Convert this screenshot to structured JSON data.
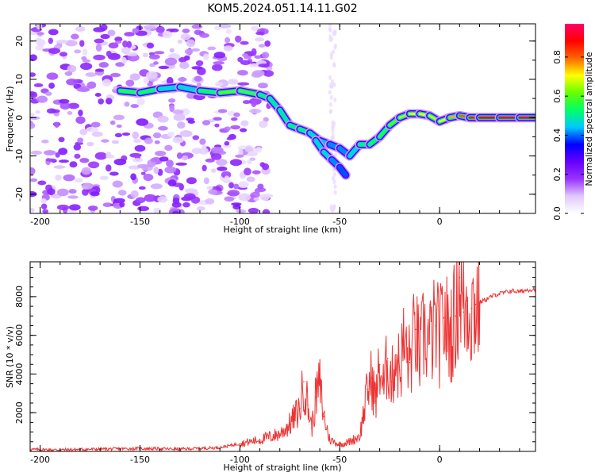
{
  "title": "KOM5.2024.051.14.11.G02",
  "chart_data": [
    {
      "type": "heatmap",
      "xlabel": "Height of straight line (km)",
      "ylabel": "Frequency (Hz)",
      "xlim": [
        -205,
        48
      ],
      "ylim": [
        -25,
        24.5
      ],
      "x_ticks": [
        -200,
        -150,
        -100,
        -50,
        0
      ],
      "y_ticks": [
        -20,
        -10,
        0,
        10,
        20
      ],
      "colorbar": {
        "label": "Normalized spectral amplitude",
        "range": [
          0.0,
          0.97
        ],
        "ticks": [
          "0.0",
          "0.2",
          "0.4",
          "0.6",
          "0.8"
        ],
        "tick_values": [
          0.0,
          0.2,
          0.4,
          0.6,
          0.8
        ],
        "colors": [
          "#ffffff",
          "#e0c8ff",
          "#9933ff",
          "#6600ff",
          "#0000ff",
          "#00c8ff",
          "#00ff66",
          "#66ff00",
          "#ffff00",
          "#ff6600",
          "#ff0000",
          "#ff0066"
        ]
      },
      "ridge": {
        "x": [
          -160,
          -150,
          -140,
          -130,
          -120,
          -110,
          -100,
          -90,
          -85,
          -80,
          -75,
          -70,
          -65,
          -60,
          -55,
          -50,
          -45,
          -40,
          -35,
          -30,
          -25,
          -20,
          -15,
          -10,
          -5,
          0,
          5,
          10,
          15,
          20,
          30,
          40,
          48
        ],
        "y": [
          7,
          6.5,
          7.5,
          8,
          7,
          6.5,
          7,
          6,
          5,
          2,
          -2,
          -3,
          -4,
          -6,
          -7,
          -8,
          -10,
          -7,
          -7,
          -5,
          -2,
          0,
          1,
          1,
          0.5,
          -1,
          0,
          0.5,
          0,
          0,
          0,
          0,
          0
        ],
        "amplitude": [
          0.55,
          0.6,
          0.5,
          0.45,
          0.5,
          0.6,
          0.65,
          0.55,
          0.5,
          0.5,
          0.5,
          0.55,
          0.5,
          0.45,
          0.45,
          0.4,
          0.45,
          0.5,
          0.55,
          0.55,
          0.6,
          0.65,
          0.7,
          0.75,
          0.7,
          0.7,
          0.75,
          0.8,
          0.85,
          0.9,
          0.95,
          0.95,
          0.95
        ]
      },
      "branch": {
        "x": [
          -62,
          -58,
          -54,
          -50,
          -47
        ],
        "y": [
          -6,
          -9,
          -11,
          -13,
          -15
        ],
        "amplitude": [
          0.45,
          0.5,
          0.45,
          0.4,
          0.4
        ]
      },
      "noise_region_x": [
        -205,
        -95
      ]
    },
    {
      "type": "line",
      "xlabel": "Height of straight line (km)",
      "ylabel": "SNR (10 * v/v)",
      "xlim": [
        -205,
        48
      ],
      "ylim": [
        0,
        9800
      ],
      "x_ticks": [
        -200,
        -150,
        -100,
        -50,
        0
      ],
      "y_ticks": [
        2000,
        4000,
        6000,
        8000
      ],
      "series": [
        {
          "color": "#ee3333",
          "x": [
            -205,
            -190,
            -170,
            -150,
            -130,
            -110,
            -100,
            -90,
            -80,
            -75,
            -70,
            -68,
            -66,
            -64,
            -62,
            -60,
            -58,
            -55,
            -50,
            -45,
            -40,
            -36,
            -34,
            -32,
            -30,
            -28,
            -26,
            -24,
            -22,
            -20,
            -18,
            -15,
            -12,
            -10,
            -8,
            -5,
            -2,
            0,
            2,
            5,
            8,
            10,
            12,
            14,
            16,
            18,
            20,
            24,
            28,
            32,
            36,
            40,
            44,
            48
          ],
          "y": [
            100,
            80,
            120,
            150,
            120,
            200,
            400,
            600,
            900,
            1400,
            2200,
            3600,
            2400,
            1200,
            2800,
            3500,
            1800,
            600,
            350,
            500,
            800,
            3200,
            3800,
            2600,
            4500,
            3200,
            4800,
            3600,
            5000,
            4200,
            5500,
            4600,
            6300,
            4800,
            6100,
            5600,
            6500,
            5800,
            6900,
            6000,
            7000,
            9000,
            7200,
            7800,
            7400,
            7600,
            7700,
            7900,
            8100,
            8200,
            8300,
            8250,
            8350,
            8400
          ]
        }
      ]
    }
  ]
}
